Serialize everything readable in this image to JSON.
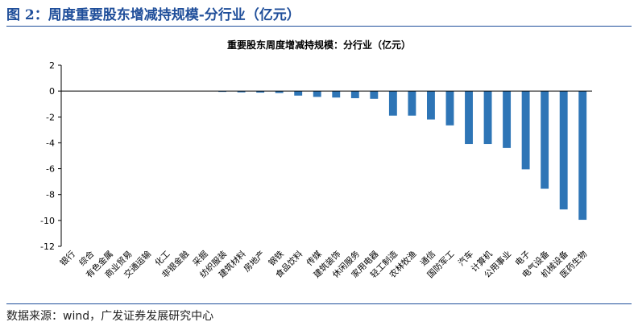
{
  "figure_title": "图 2：周度重要股东增减持规模-分行业（亿元）",
  "source": "数据来源：wind，广发证券发展研究中心",
  "chart_data": {
    "type": "bar",
    "title": "重要股东周度增减持规模：分行业（亿元）",
    "xlabel": "",
    "ylabel": "",
    "ylim": [
      -12,
      2
    ],
    "yticks": [
      2,
      0,
      -2,
      -4,
      -6,
      -8,
      -10,
      -12
    ],
    "grid": false,
    "legend": "none",
    "bar_color": "#2e75b6",
    "categories": [
      "银行",
      "综合",
      "有色金属",
      "商业贸易",
      "交通运输",
      "化工",
      "非银金融",
      "采掘",
      "纺织服装",
      "建筑材料",
      "房地产",
      "钢铁",
      "食品饮料",
      "传媒",
      "建筑装饰",
      "休闲服务",
      "家用电器",
      "轻工制造",
      "农林牧渔",
      "通信",
      "国防军工",
      "汽车",
      "计算机",
      "公用事业",
      "电子",
      "电气设备",
      "机械设备",
      "医药生物"
    ],
    "values": [
      0,
      0,
      0,
      0,
      0,
      0,
      0,
      0,
      -0.05,
      -0.1,
      -0.12,
      -0.15,
      -0.35,
      -0.45,
      -0.5,
      -0.55,
      -0.6,
      -1.9,
      -1.9,
      -2.2,
      -2.65,
      -4.1,
      -4.1,
      -4.4,
      -6.05,
      -7.55,
      -9.15,
      -9.95
    ]
  }
}
